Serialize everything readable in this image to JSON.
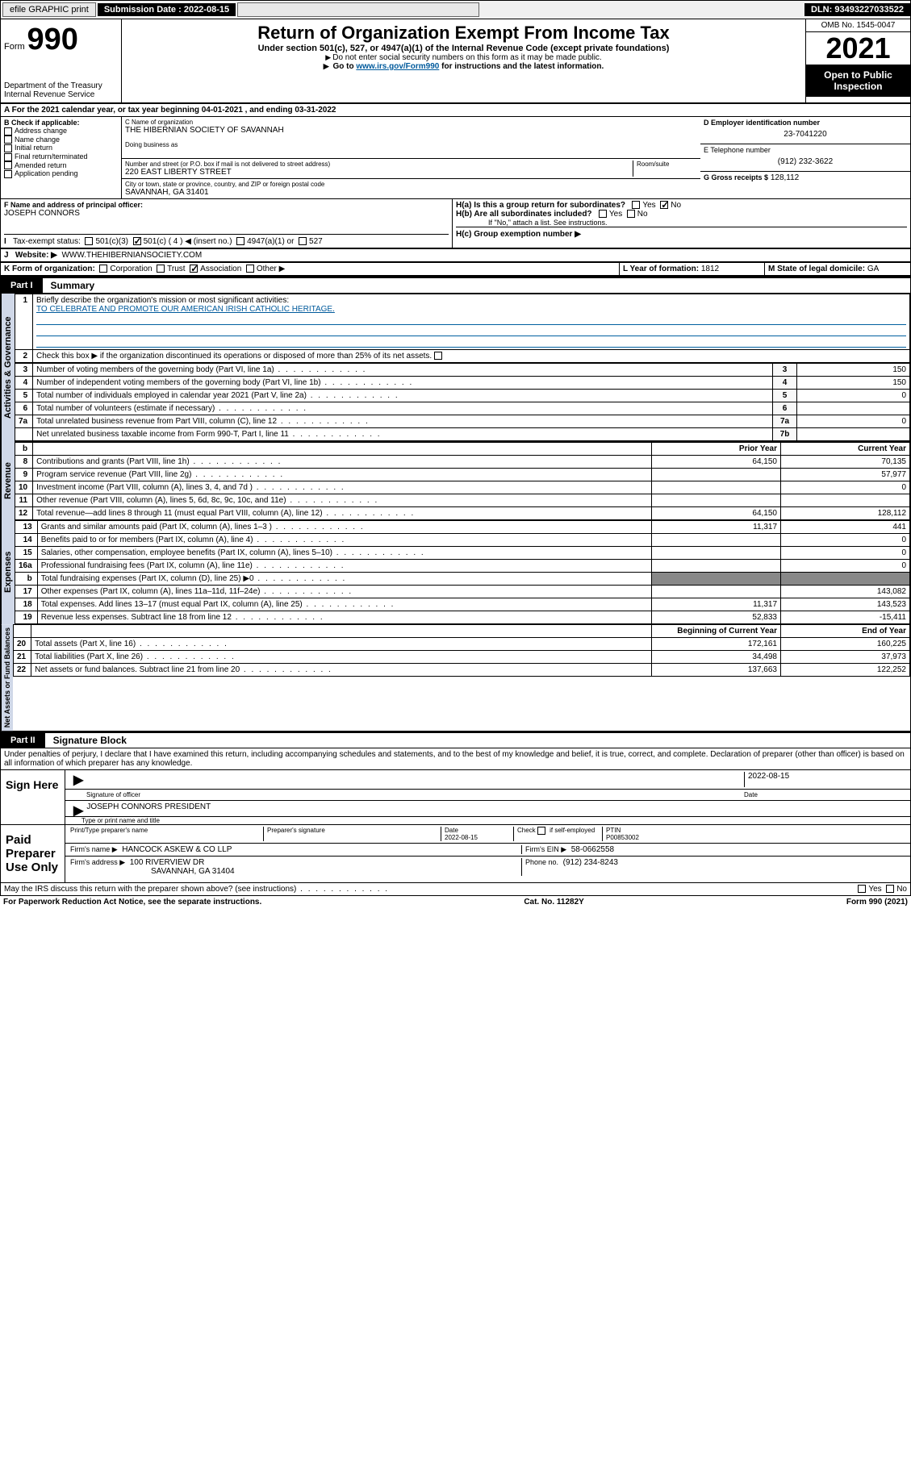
{
  "topbar": {
    "efile": "efile GRAPHIC print",
    "subdate_label": "Submission Date : 2022-08-15",
    "dln": "DLN: 93493227033522"
  },
  "header": {
    "form_word": "Form",
    "form_no": "990",
    "dept": "Department of the Treasury",
    "irs": "Internal Revenue Service",
    "title": "Return of Organization Exempt From Income Tax",
    "sub": "Under section 501(c), 527, or 4947(a)(1) of the Internal Revenue Code (except private foundations)",
    "note1": "Do not enter social security numbers on this form as it may be made public.",
    "note2_pre": "Go to ",
    "note2_link": "www.irs.gov/Form990",
    "note2_post": " for instructions and the latest information.",
    "omb": "OMB No. 1545-0047",
    "year": "2021",
    "open": "Open to Public Inspection"
  },
  "lineA": "For the 2021 calendar year, or tax year beginning 04-01-2021   , and ending 03-31-2022",
  "boxB": {
    "title": "B Check if applicable:",
    "items": [
      "Address change",
      "Name change",
      "Initial return",
      "Final return/terminated",
      "Amended return",
      "Application pending"
    ]
  },
  "boxC": {
    "name_lbl": "C Name of organization",
    "name": "THE HIBERNIAN SOCIETY OF SAVANNAH",
    "dba_lbl": "Doing business as",
    "addr_lbl": "Number and street (or P.O. box if mail is not delivered to street address)",
    "room_lbl": "Room/suite",
    "addr": "220 EAST LIBERTY STREET",
    "city_lbl": "City or town, state or province, country, and ZIP or foreign postal code",
    "city": "SAVANNAH, GA  31401"
  },
  "boxD": {
    "lbl": "D Employer identification number",
    "val": "23-7041220"
  },
  "boxE": {
    "lbl": "E Telephone number",
    "val": "(912) 232-3622"
  },
  "boxG": {
    "lbl": "G Gross receipts $",
    "val": "128,112"
  },
  "boxF": {
    "lbl": "F Name and address of principal officer:",
    "val": "JOSEPH CONNORS"
  },
  "boxH": {
    "a": "H(a)  Is this a group return for subordinates?",
    "b": "H(b)  Are all subordinates included?",
    "bnote": "If \"No,\" attach a list. See instructions.",
    "c": "H(c)  Group exemption number ▶",
    "yes": "Yes",
    "no": "No"
  },
  "boxI": {
    "lbl": "Tax-exempt status:",
    "opts": [
      "501(c)(3)",
      "501(c) ( 4 ) ◀ (insert no.)",
      "4947(a)(1) or",
      "527"
    ]
  },
  "boxJ": {
    "lbl": "Website: ▶",
    "val": "WWW.THEHIBERNIANSOCIETY.COM"
  },
  "boxK": {
    "lbl": "K Form of organization:",
    "opts": [
      "Corporation",
      "Trust",
      "Association",
      "Other ▶"
    ]
  },
  "boxL": {
    "lbl": "L Year of formation:",
    "val": "1812"
  },
  "boxM": {
    "lbl": "M State of legal domicile:",
    "val": "GA"
  },
  "part1": {
    "tag": "Part I",
    "title": "Summary"
  },
  "summary": {
    "l1_lbl": "Briefly describe the organization's mission or most significant activities:",
    "l1_val": "TO CELEBRATE AND PROMOTE OUR AMERICAN IRISH CATHOLIC HERITAGE.",
    "l2": "Check this box ▶       if the organization discontinued its operations or disposed of more than 25% of its net assets.",
    "rows_gov": [
      {
        "n": "3",
        "t": "Number of voting members of the governing body (Part VI, line 1a)",
        "c": "3",
        "v": "150"
      },
      {
        "n": "4",
        "t": "Number of independent voting members of the governing body (Part VI, line 1b)",
        "c": "4",
        "v": "150"
      },
      {
        "n": "5",
        "t": "Total number of individuals employed in calendar year 2021 (Part V, line 2a)",
        "c": "5",
        "v": "0"
      },
      {
        "n": "6",
        "t": "Total number of volunteers (estimate if necessary)",
        "c": "6",
        "v": ""
      },
      {
        "n": "7a",
        "t": "Total unrelated business revenue from Part VIII, column (C), line 12",
        "c": "7a",
        "v": "0"
      },
      {
        "n": "",
        "t": "Net unrelated business taxable income from Form 990-T, Part I, line 11",
        "c": "7b",
        "v": ""
      }
    ],
    "col_prior": "Prior Year",
    "col_curr": "Current Year",
    "rows_rev": [
      {
        "n": "8",
        "t": "Contributions and grants (Part VIII, line 1h)",
        "p": "64,150",
        "c": "70,135"
      },
      {
        "n": "9",
        "t": "Program service revenue (Part VIII, line 2g)",
        "p": "",
        "c": "57,977"
      },
      {
        "n": "10",
        "t": "Investment income (Part VIII, column (A), lines 3, 4, and 7d )",
        "p": "",
        "c": "0"
      },
      {
        "n": "11",
        "t": "Other revenue (Part VIII, column (A), lines 5, 6d, 8c, 9c, 10c, and 11e)",
        "p": "",
        "c": ""
      },
      {
        "n": "12",
        "t": "Total revenue—add lines 8 through 11 (must equal Part VIII, column (A), line 12)",
        "p": "64,150",
        "c": "128,112"
      }
    ],
    "rows_exp": [
      {
        "n": "13",
        "t": "Grants and similar amounts paid (Part IX, column (A), lines 1–3 )",
        "p": "11,317",
        "c": "441"
      },
      {
        "n": "14",
        "t": "Benefits paid to or for members (Part IX, column (A), line 4)",
        "p": "",
        "c": "0"
      },
      {
        "n": "15",
        "t": "Salaries, other compensation, employee benefits (Part IX, column (A), lines 5–10)",
        "p": "",
        "c": "0"
      },
      {
        "n": "16a",
        "t": "Professional fundraising fees (Part IX, column (A), line 11e)",
        "p": "",
        "c": "0"
      },
      {
        "n": "b",
        "t": "Total fundraising expenses (Part IX, column (D), line 25) ▶0",
        "p": "GREY",
        "c": "GREY"
      },
      {
        "n": "17",
        "t": "Other expenses (Part IX, column (A), lines 11a–11d, 11f–24e)",
        "p": "",
        "c": "143,082"
      },
      {
        "n": "18",
        "t": "Total expenses. Add lines 13–17 (must equal Part IX, column (A), line 25)",
        "p": "11,317",
        "c": "143,523"
      },
      {
        "n": "19",
        "t": "Revenue less expenses. Subtract line 18 from line 12",
        "p": "52,833",
        "c": "-15,411"
      }
    ],
    "col_beg": "Beginning of Current Year",
    "col_end": "End of Year",
    "rows_net": [
      {
        "n": "20",
        "t": "Total assets (Part X, line 16)",
        "p": "172,161",
        "c": "160,225"
      },
      {
        "n": "21",
        "t": "Total liabilities (Part X, line 26)",
        "p": "34,498",
        "c": "37,973"
      },
      {
        "n": "22",
        "t": "Net assets or fund balances. Subtract line 21 from line 20",
        "p": "137,663",
        "c": "122,252"
      }
    ],
    "vlabels": {
      "gov": "Activities & Governance",
      "rev": "Revenue",
      "exp": "Expenses",
      "net": "Net Assets or Fund Balances"
    }
  },
  "part2": {
    "tag": "Part II",
    "title": "Signature Block"
  },
  "perjury": "Under penalties of perjury, I declare that I have examined this return, including accompanying schedules and statements, and to the best of my knowledge and belief, it is true, correct, and complete. Declaration of preparer (other than officer) is based on all information of which preparer has any knowledge.",
  "sign": {
    "here": "Sign Here",
    "sig_lbl": "Signature of officer",
    "date_lbl": "Date",
    "date": "2022-08-15",
    "name": "JOSEPH CONNORS  PRESIDENT",
    "name_lbl": "Type or print name and title"
  },
  "prep": {
    "title": "Paid Preparer Use Only",
    "h1": "Print/Type preparer's name",
    "h2": "Preparer's signature",
    "h3": "Date",
    "h3v": "2022-08-15",
    "h4": "Check        if self-employed",
    "h5": "PTIN",
    "h5v": "P00853002",
    "firm_lbl": "Firm's name    ▶",
    "firm": "HANCOCK ASKEW & CO LLP",
    "ein_lbl": "Firm's EIN ▶",
    "ein": "58-0662558",
    "addr_lbl": "Firm's address ▶",
    "addr1": "100 RIVERVIEW DR",
    "addr2": "SAVANNAH, GA  31404",
    "phone_lbl": "Phone no.",
    "phone": "(912) 234-8243"
  },
  "may": "May the IRS discuss this return with the preparer shown above? (see instructions)",
  "footer": {
    "l": "For Paperwork Reduction Act Notice, see the separate instructions.",
    "m": "Cat. No. 11282Y",
    "r": "Form 990 (2021)"
  }
}
